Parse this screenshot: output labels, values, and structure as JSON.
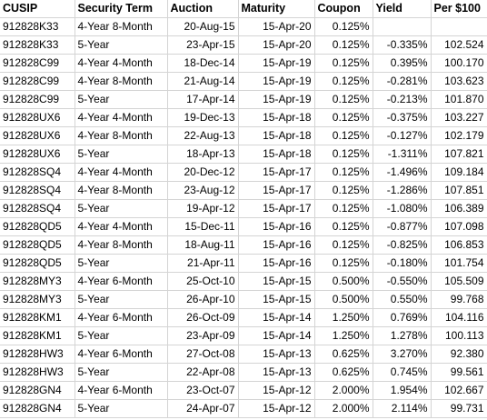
{
  "table": {
    "headers": [
      "CUSIP",
      "Security Term",
      "Auction",
      "Maturity",
      "Coupon",
      "Yield",
      "Per $100"
    ],
    "rows": [
      [
        "912828K33",
        "4-Year 8-Month",
        "20-Aug-15",
        "15-Apr-20",
        "0.125%",
        "",
        ""
      ],
      [
        "912828K33",
        "5-Year",
        "23-Apr-15",
        "15-Apr-20",
        "0.125%",
        "-0.335%",
        "102.524"
      ],
      [
        "912828C99",
        "4-Year 4-Month",
        "18-Dec-14",
        "15-Apr-19",
        "0.125%",
        "0.395%",
        "100.170"
      ],
      [
        "912828C99",
        "4-Year 8-Month",
        "21-Aug-14",
        "15-Apr-19",
        "0.125%",
        "-0.281%",
        "103.623"
      ],
      [
        "912828C99",
        "5-Year",
        "17-Apr-14",
        "15-Apr-19",
        "0.125%",
        "-0.213%",
        "101.870"
      ],
      [
        "912828UX6",
        "4-Year 4-Month",
        "19-Dec-13",
        "15-Apr-18",
        "0.125%",
        "-0.375%",
        "103.227"
      ],
      [
        "912828UX6",
        "4-Year 8-Month",
        "22-Aug-13",
        "15-Apr-18",
        "0.125%",
        "-0.127%",
        "102.179"
      ],
      [
        "912828UX6",
        "5-Year",
        "18-Apr-13",
        "15-Apr-18",
        "0.125%",
        "-1.311%",
        "107.821"
      ],
      [
        "912828SQ4",
        "4-Year 4-Month",
        "20-Dec-12",
        "15-Apr-17",
        "0.125%",
        "-1.496%",
        "109.184"
      ],
      [
        "912828SQ4",
        "4-Year 8-Month",
        "23-Aug-12",
        "15-Apr-17",
        "0.125%",
        "-1.286%",
        "107.851"
      ],
      [
        "912828SQ4",
        "5-Year",
        "19-Apr-12",
        "15-Apr-17",
        "0.125%",
        "-1.080%",
        "106.389"
      ],
      [
        "912828QD5",
        "4-Year 4-Month",
        "15-Dec-11",
        "15-Apr-16",
        "0.125%",
        "-0.877%",
        "107.098"
      ],
      [
        "912828QD5",
        "4-Year 8-Month",
        "18-Aug-11",
        "15-Apr-16",
        "0.125%",
        "-0.825%",
        "106.853"
      ],
      [
        "912828QD5",
        "5-Year",
        "21-Apr-11",
        "15-Apr-16",
        "0.125%",
        "-0.180%",
        "101.754"
      ],
      [
        "912828MY3",
        "4-Year 6-Month",
        "25-Oct-10",
        "15-Apr-15",
        "0.500%",
        "-0.550%",
        "105.509"
      ],
      [
        "912828MY3",
        "5-Year",
        "26-Apr-10",
        "15-Apr-15",
        "0.500%",
        "0.550%",
        "99.768"
      ],
      [
        "912828KM1",
        "4-Year 6-Month",
        "26-Oct-09",
        "15-Apr-14",
        "1.250%",
        "0.769%",
        "104.116"
      ],
      [
        "912828KM1",
        "5-Year",
        "23-Apr-09",
        "15-Apr-14",
        "1.250%",
        "1.278%",
        "100.113"
      ],
      [
        "912828HW3",
        "4-Year 6-Month",
        "27-Oct-08",
        "15-Apr-13",
        "0.625%",
        "3.270%",
        "92.380"
      ],
      [
        "912828HW3",
        "5-Year",
        "22-Apr-08",
        "15-Apr-13",
        "0.625%",
        "0.745%",
        "99.561"
      ],
      [
        "912828GN4",
        "4-Year 6-Month",
        "23-Oct-07",
        "15-Apr-12",
        "2.000%",
        "1.954%",
        "102.667"
      ],
      [
        "912828GN4",
        "5-Year",
        "24-Apr-07",
        "15-Apr-12",
        "2.000%",
        "2.114%",
        "99.731"
      ]
    ]
  }
}
